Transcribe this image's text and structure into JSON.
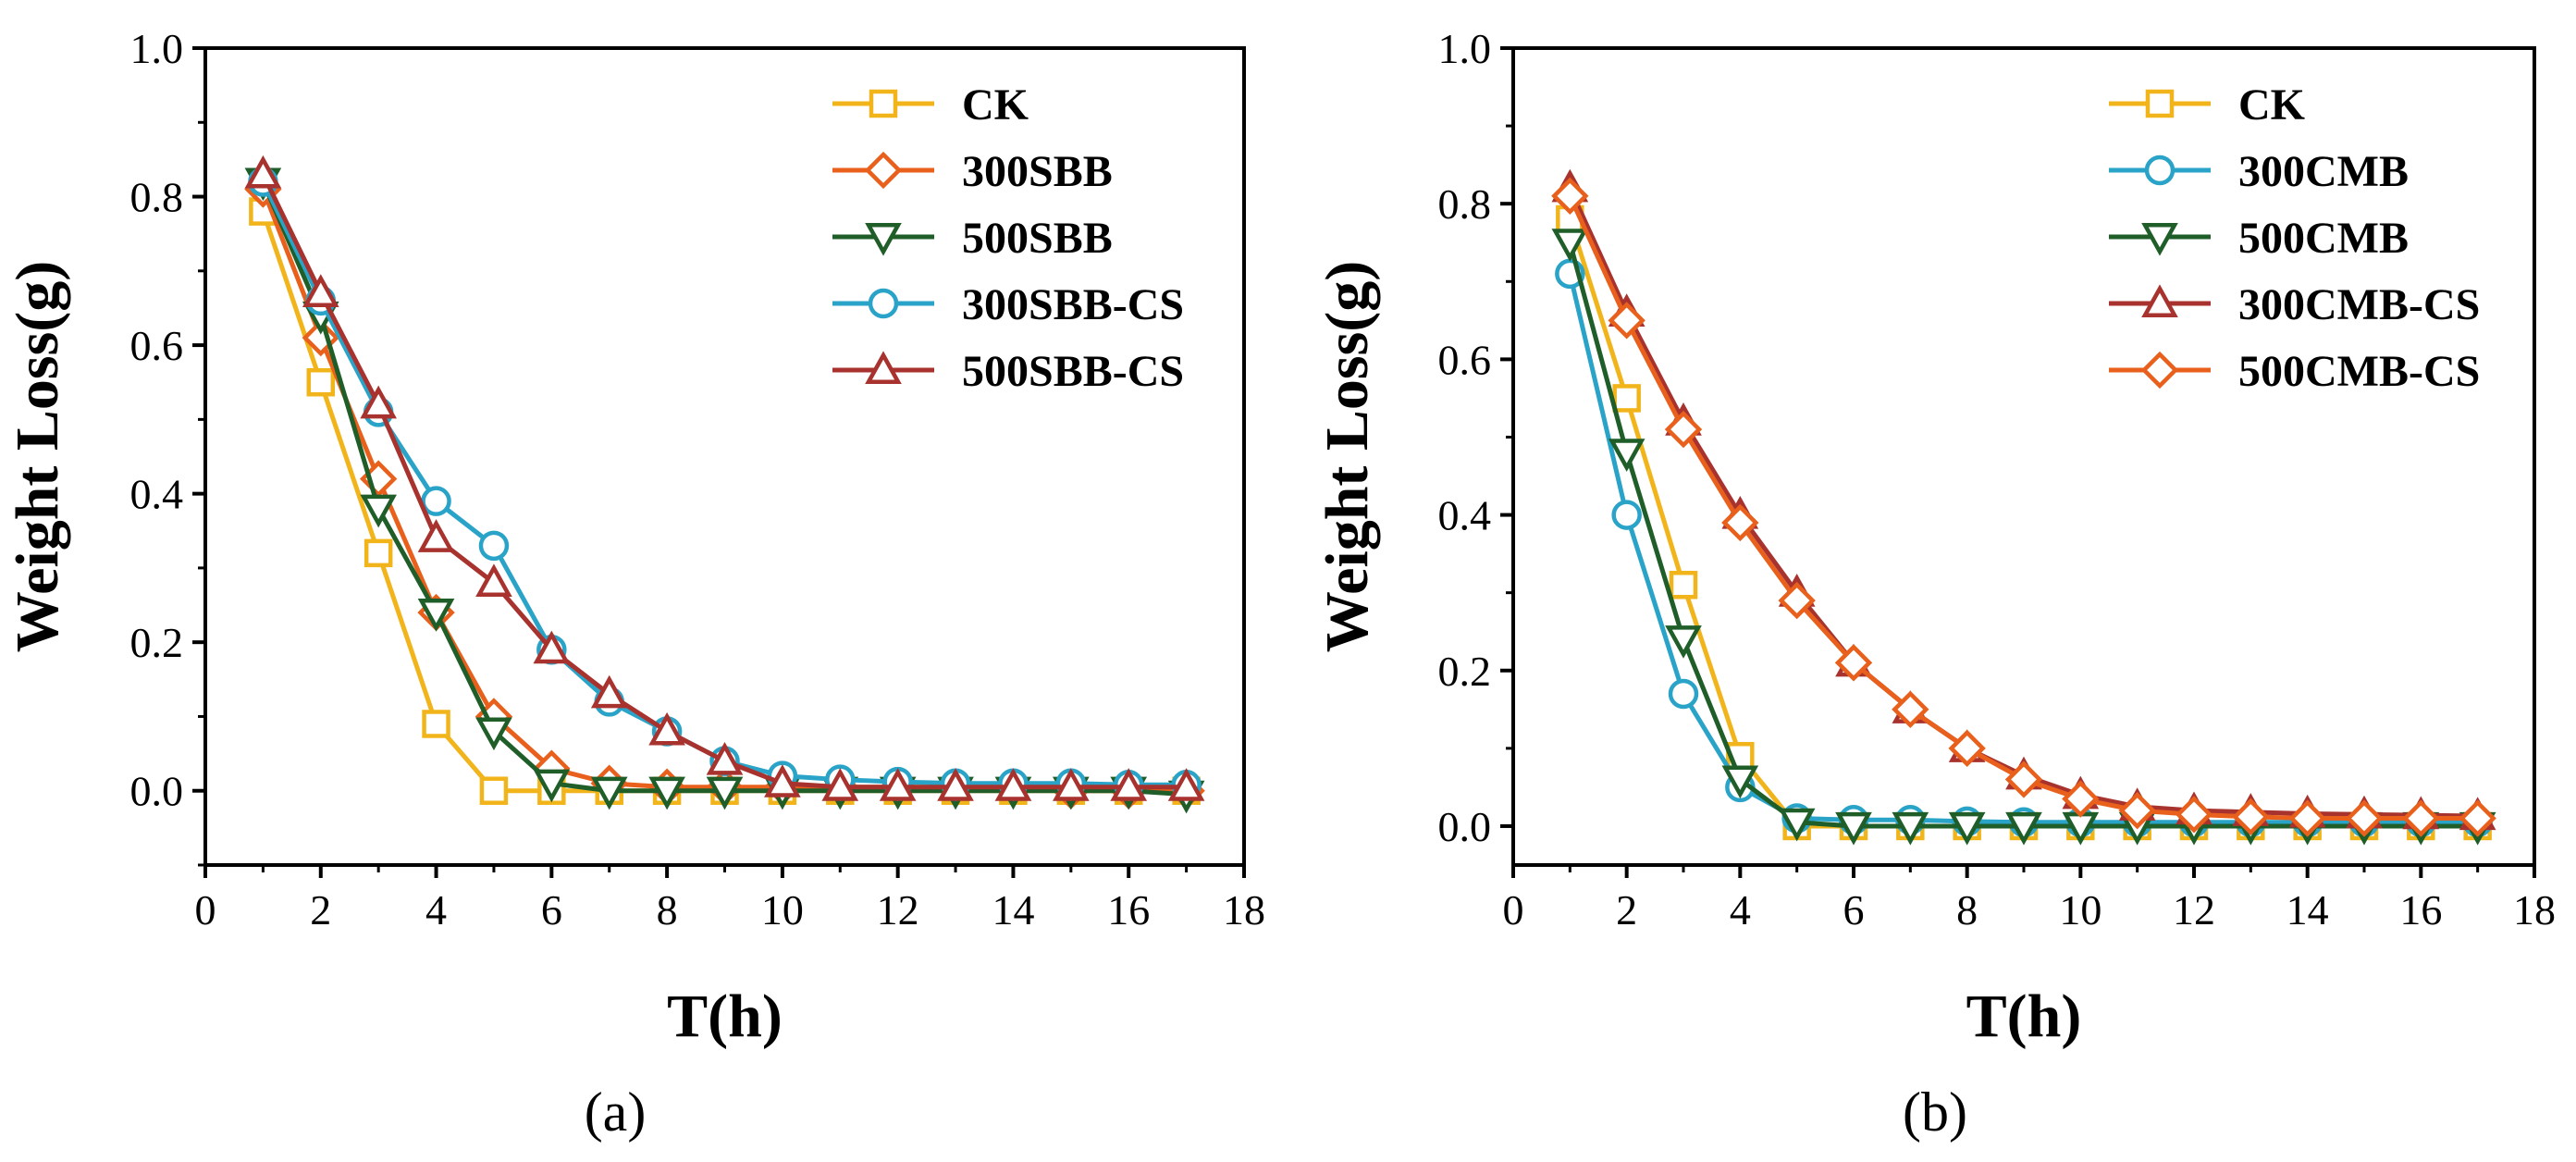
{
  "chart_data": [
    {
      "type": "line",
      "panel_label": "(a)",
      "xlabel": "T(h)",
      "ylabel": "Weight Loss(g)",
      "xlim": [
        0,
        18
      ],
      "ylim": [
        -0.1,
        1.0
      ],
      "xticks": [
        "0",
        "2",
        "4",
        "6",
        "8",
        "10",
        "12",
        "14",
        "16",
        "18"
      ],
      "yticks": [
        "0.0",
        "0.2",
        "0.4",
        "0.6",
        "0.8",
        "1.0"
      ],
      "legend_position": "top-right",
      "x": [
        1,
        2,
        3,
        4,
        5,
        6,
        7,
        8,
        9,
        10,
        11,
        12,
        13,
        14,
        15,
        16,
        17
      ],
      "series": [
        {
          "name": "CK",
          "color": "#f2b41b",
          "marker": "square",
          "values": [
            0.78,
            0.55,
            0.32,
            0.09,
            0.0,
            0.0,
            0.0,
            0.0,
            0.0,
            0.0,
            0.0,
            0.0,
            0.0,
            0.0,
            0.0,
            0.0,
            0.0
          ]
        },
        {
          "name": "300SBB",
          "color": "#e8601c",
          "marker": "diamond",
          "values": [
            0.81,
            0.61,
            0.42,
            0.24,
            0.1,
            0.03,
            0.01,
            0.005,
            0.005,
            0.005,
            0.005,
            0.005,
            0.005,
            0.005,
            0.0,
            0.0,
            0.0
          ]
        },
        {
          "name": "500SBB",
          "color": "#1f5e28",
          "marker": "triangle-down",
          "values": [
            0.82,
            0.64,
            0.38,
            0.24,
            0.08,
            0.01,
            0.0,
            0.0,
            0.0,
            0.0,
            0.0,
            0.0,
            0.0,
            0.0,
            0.0,
            0.0,
            -0.005
          ]
        },
        {
          "name": "300SBB-CS",
          "color": "#2aa3c8",
          "marker": "circle",
          "values": [
            0.82,
            0.66,
            0.51,
            0.39,
            0.33,
            0.19,
            0.12,
            0.08,
            0.04,
            0.02,
            0.015,
            0.012,
            0.01,
            0.01,
            0.01,
            0.008,
            0.008
          ]
        },
        {
          "name": "500SBB-CS",
          "color": "#a8322d",
          "marker": "triangle-up",
          "values": [
            0.83,
            0.67,
            0.52,
            0.34,
            0.28,
            0.19,
            0.13,
            0.08,
            0.04,
            0.01,
            0.005,
            0.005,
            0.005,
            0.005,
            0.005,
            0.005,
            0.005
          ]
        }
      ]
    },
    {
      "type": "line",
      "panel_label": "(b)",
      "xlabel": "T(h)",
      "ylabel": "Weight Loss(g)",
      "xlim": [
        0,
        18
      ],
      "ylim": [
        -0.05,
        1.0
      ],
      "xticks": [
        "0",
        "2",
        "4",
        "6",
        "8",
        "10",
        "12",
        "14",
        "16",
        "18"
      ],
      "yticks": [
        "0.0",
        "0.2",
        "0.4",
        "0.6",
        "0.8",
        "1.0"
      ],
      "legend_position": "top-right",
      "x": [
        1,
        2,
        3,
        4,
        5,
        6,
        7,
        8,
        9,
        10,
        11,
        12,
        13,
        14,
        15,
        16,
        17
      ],
      "series": [
        {
          "name": "CK",
          "color": "#f2b41b",
          "marker": "square",
          "values": [
            0.78,
            0.55,
            0.31,
            0.09,
            0.0,
            0.0,
            0.0,
            0.0,
            0.0,
            0.0,
            0.0,
            0.0,
            0.0,
            0.0,
            0.0,
            0.0,
            0.0
          ]
        },
        {
          "name": "300CMB",
          "color": "#2aa3c8",
          "marker": "circle",
          "values": [
            0.71,
            0.4,
            0.17,
            0.05,
            0.01,
            0.008,
            0.008,
            0.006,
            0.005,
            0.005,
            0.005,
            0.005,
            0.005,
            0.005,
            0.005,
            0.005,
            0.005
          ]
        },
        {
          "name": "500CMB",
          "color": "#1f5e28",
          "marker": "triangle-down",
          "values": [
            0.75,
            0.48,
            0.24,
            0.06,
            0.005,
            0.0,
            0.0,
            0.0,
            0.0,
            0.0,
            0.0,
            0.0,
            0.0,
            0.0,
            0.0,
            0.0,
            0.0
          ]
        },
        {
          "name": "300CMB-CS",
          "color": "#a8322d",
          "marker": "triangle-up",
          "values": [
            0.82,
            0.66,
            0.52,
            0.4,
            0.3,
            0.21,
            0.15,
            0.1,
            0.065,
            0.04,
            0.025,
            0.02,
            0.018,
            0.016,
            0.015,
            0.014,
            0.013
          ]
        },
        {
          "name": "500CMB-CS",
          "color": "#e8601c",
          "marker": "diamond",
          "values": [
            0.81,
            0.65,
            0.51,
            0.39,
            0.29,
            0.21,
            0.15,
            0.1,
            0.06,
            0.035,
            0.02,
            0.015,
            0.012,
            0.01,
            0.01,
            0.01,
            0.01
          ]
        }
      ]
    }
  ]
}
